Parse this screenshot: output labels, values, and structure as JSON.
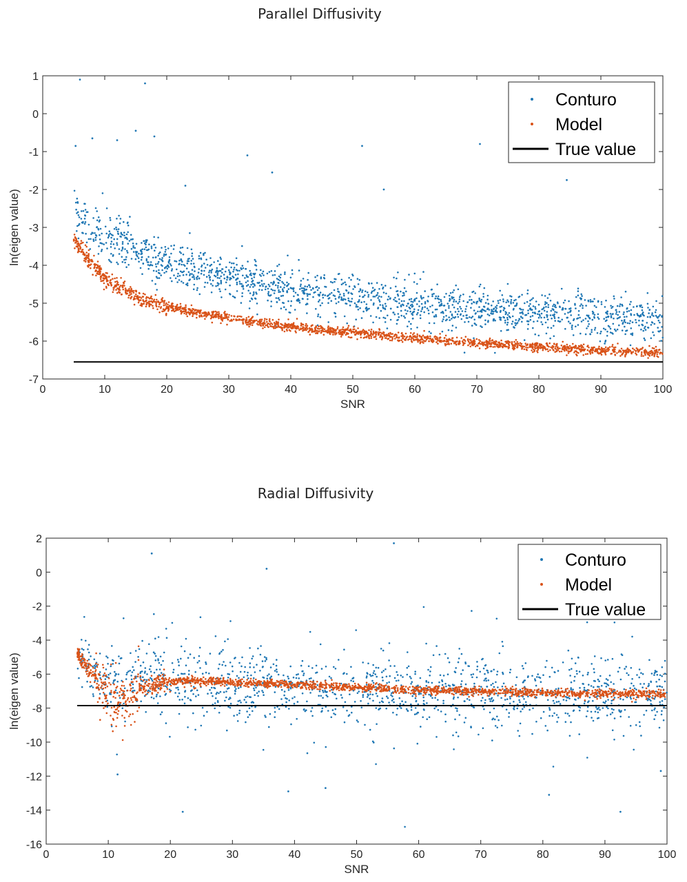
{
  "chart_data": [
    {
      "type": "scatter",
      "title": "Parallel Diffusivity",
      "xlabel": "SNR",
      "ylabel": "ln(eigen value)",
      "xlim": [
        0,
        100
      ],
      "ylim": [
        -7,
        1
      ],
      "xticks": [
        0,
        10,
        20,
        30,
        40,
        50,
        60,
        70,
        80,
        90,
        100
      ],
      "yticks": [
        -7,
        -6,
        -5,
        -4,
        -3,
        -2,
        -1,
        0,
        1
      ],
      "legend": "top-right",
      "grid": false,
      "series": [
        {
          "name": "Conturo",
          "kind": "scatter",
          "color": "#1f77b4",
          "x_range": [
            5,
            100
          ],
          "approx_curve": [
            [
              5,
              -2.6
            ],
            [
              10,
              -3.3
            ],
            [
              20,
              -3.9
            ],
            [
              30,
              -4.3
            ],
            [
              40,
              -4.6
            ],
            [
              50,
              -4.85
            ],
            [
              60,
              -5.05
            ],
            [
              70,
              -5.15
            ],
            [
              80,
              -5.25
            ],
            [
              90,
              -5.35
            ],
            [
              100,
              -5.4
            ]
          ],
          "outliers": [
            [
              6,
              0.9
            ],
            [
              16.5,
              0.8
            ],
            [
              15,
              -0.45
            ],
            [
              5.3,
              -0.85
            ],
            [
              8,
              -0.65
            ],
            [
              12,
              -0.7
            ],
            [
              18,
              -0.6
            ],
            [
              33,
              -1.1
            ],
            [
              51.5,
              -0.85
            ],
            [
              70.5,
              -0.8
            ],
            [
              37,
              -1.55
            ],
            [
              55,
              -2.0
            ],
            [
              23,
              -1.9
            ],
            [
              84.5,
              -1.75
            ]
          ]
        },
        {
          "name": "Model",
          "kind": "scatter",
          "color": "#d95319",
          "x_range": [
            5,
            100
          ],
          "approx_curve": [
            [
              5,
              -3.35
            ],
            [
              10,
              -4.35
            ],
            [
              15,
              -4.85
            ],
            [
              20,
              -5.1
            ],
            [
              30,
              -5.4
            ],
            [
              40,
              -5.62
            ],
            [
              50,
              -5.78
            ],
            [
              60,
              -5.93
            ],
            [
              70,
              -6.05
            ],
            [
              80,
              -6.15
            ],
            [
              90,
              -6.24
            ],
            [
              100,
              -6.31
            ]
          ]
        },
        {
          "name": "True value",
          "kind": "line",
          "color": "#000000",
          "x": [
            5,
            100
          ],
          "y": [
            -6.55,
            -6.55
          ]
        }
      ]
    },
    {
      "type": "scatter",
      "title": "Radial Diffusivity",
      "xlabel": "SNR",
      "ylabel": "ln(eigen value)",
      "xlim": [
        0,
        100
      ],
      "ylim": [
        -16,
        2
      ],
      "xticks": [
        0,
        10,
        20,
        30,
        40,
        50,
        60,
        70,
        80,
        90,
        100
      ],
      "yticks": [
        -16,
        -14,
        -12,
        -10,
        -8,
        -6,
        -4,
        -2,
        0,
        2
      ],
      "legend": "top-right",
      "grid": false,
      "series": [
        {
          "name": "Conturo",
          "kind": "scatter",
          "color": "#1f77b4",
          "x_range": [
            5,
            100
          ],
          "approx_curve": [
            [
              5,
              -5.0
            ],
            [
              10,
              -6.2
            ],
            [
              20,
              -6.5
            ],
            [
              40,
              -6.8
            ],
            [
              60,
              -7.0
            ],
            [
              80,
              -7.1
            ],
            [
              100,
              -7.2
            ]
          ],
          "outliers": [
            [
              17,
              1.1
            ],
            [
              35.5,
              0.2
            ],
            [
              56,
              1.7
            ],
            [
              22,
              -14.1
            ],
            [
              92.5,
              -14.1
            ],
            [
              81,
              -13.1
            ],
            [
              39,
              -12.9
            ],
            [
              11.5,
              -11.9
            ],
            [
              45,
              -12.7
            ],
            [
              99,
              -11.7
            ]
          ]
        },
        {
          "name": "Model",
          "kind": "scatter",
          "color": "#d95319",
          "x_range": [
            5,
            100
          ],
          "approx_curve": [
            [
              5,
              -4.8
            ],
            [
              8,
              -6.2
            ],
            [
              11,
              -7.8
            ],
            [
              13,
              -7.6
            ],
            [
              15,
              -6.8
            ],
            [
              20,
              -6.45
            ],
            [
              25,
              -6.4
            ],
            [
              40,
              -6.6
            ],
            [
              60,
              -6.95
            ],
            [
              80,
              -7.1
            ],
            [
              100,
              -7.2
            ]
          ]
        },
        {
          "name": "True value",
          "kind": "line",
          "color": "#000000",
          "x": [
            5,
            100
          ],
          "y": [
            -7.85,
            -7.85
          ]
        }
      ]
    }
  ]
}
